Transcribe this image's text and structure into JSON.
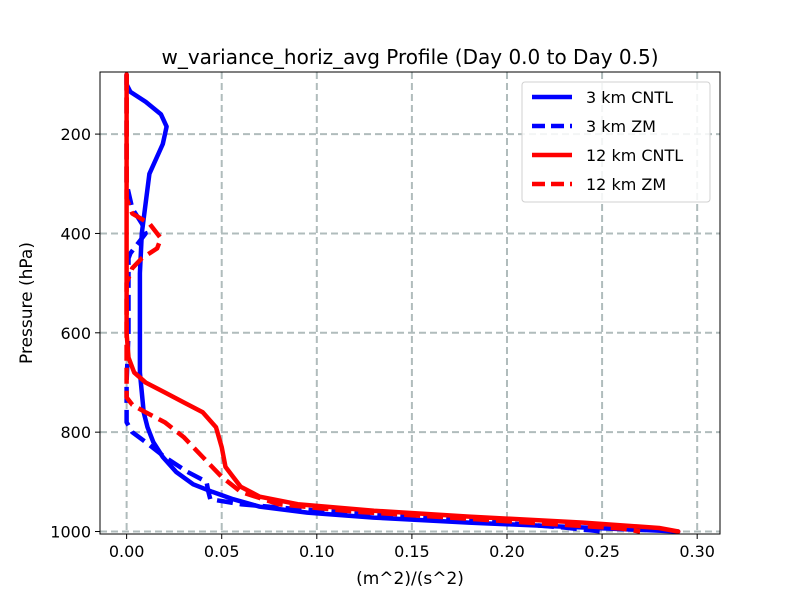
{
  "chart_data": {
    "type": "line",
    "title": "w_variance_horiz_avg Profile (Day 0.0 to Day 0.5)",
    "xlabel": "(m^2)/(s^2)",
    "ylabel": "Pressure (hPa)",
    "xlim": [
      -0.014,
      0.312
    ],
    "ylim": [
      1005,
      75
    ],
    "y_inverted": true,
    "grid": true,
    "grid_style": "dashed",
    "legend_position": "top-right",
    "x_ticks": [
      "0.00",
      "0.05",
      "0.10",
      "0.15",
      "0.20",
      "0.25",
      "0.30"
    ],
    "y_ticks": [
      "200",
      "400",
      "600",
      "800",
      "1000"
    ],
    "series": [
      {
        "name": "3 km CNTL",
        "color": "#0000ff",
        "style": "solid",
        "x": [
          0.0,
          0.0,
          0.002,
          0.01,
          0.018,
          0.021,
          0.019,
          0.012,
          0.01,
          0.008,
          0.007,
          0.007,
          0.007,
          0.007,
          0.008,
          0.009,
          0.011,
          0.014,
          0.019,
          0.026,
          0.035,
          0.045,
          0.056,
          0.07,
          0.095,
          0.13,
          0.18,
          0.24,
          0.29
        ],
        "y": [
          80,
          100,
          115,
          135,
          160,
          185,
          220,
          280,
          340,
          400,
          480,
          560,
          620,
          680,
          720,
          760,
          790,
          820,
          850,
          880,
          905,
          920,
          935,
          950,
          962,
          972,
          982,
          992,
          1000
        ]
      },
      {
        "name": "3 km ZM",
        "color": "#0000ff",
        "style": "dashed",
        "x": [
          0.0,
          0.0,
          0.0,
          0.003,
          0.008,
          0.01,
          0.006,
          0.002,
          0.001,
          0.001,
          0.001,
          0.0,
          0.0,
          0.0,
          0.003,
          0.01,
          0.02,
          0.032,
          0.042,
          0.043,
          0.044,
          0.06,
          0.09,
          0.14,
          0.19,
          0.23,
          0.25
        ],
        "y": [
          80,
          200,
          300,
          350,
          380,
          400,
          420,
          440,
          450,
          500,
          600,
          700,
          760,
          780,
          800,
          820,
          850,
          880,
          900,
          920,
          935,
          945,
          955,
          967,
          980,
          992,
          1000
        ]
      },
      {
        "name": "12 km CNTL",
        "color": "#ff0000",
        "style": "solid",
        "x": [
          0.0,
          0.0,
          0.0,
          0.0,
          0.001,
          0.004,
          0.01,
          0.02,
          0.03,
          0.04,
          0.047,
          0.05,
          0.052,
          0.056,
          0.06,
          0.07,
          0.09,
          0.13,
          0.18,
          0.24,
          0.28,
          0.29
        ],
        "y": [
          80,
          200,
          400,
          600,
          650,
          680,
          700,
          720,
          740,
          760,
          790,
          830,
          870,
          890,
          910,
          930,
          945,
          958,
          970,
          982,
          993,
          1000
        ]
      },
      {
        "name": "12 km ZM",
        "color": "#ff0000",
        "style": "dashed",
        "x": [
          0.0,
          0.0,
          0.003,
          0.012,
          0.018,
          0.016,
          0.008,
          0.003,
          0.0,
          0.0,
          0.0,
          0.0,
          0.003,
          0.01,
          0.02,
          0.03,
          0.04,
          0.05,
          0.06,
          0.08,
          0.12,
          0.17,
          0.22,
          0.26,
          0.27
        ],
        "y": [
          80,
          330,
          360,
          380,
          410,
          430,
          450,
          470,
          500,
          600,
          700,
          730,
          745,
          760,
          780,
          810,
          850,
          890,
          920,
          945,
          960,
          972,
          984,
          994,
          1000
        ]
      }
    ]
  }
}
